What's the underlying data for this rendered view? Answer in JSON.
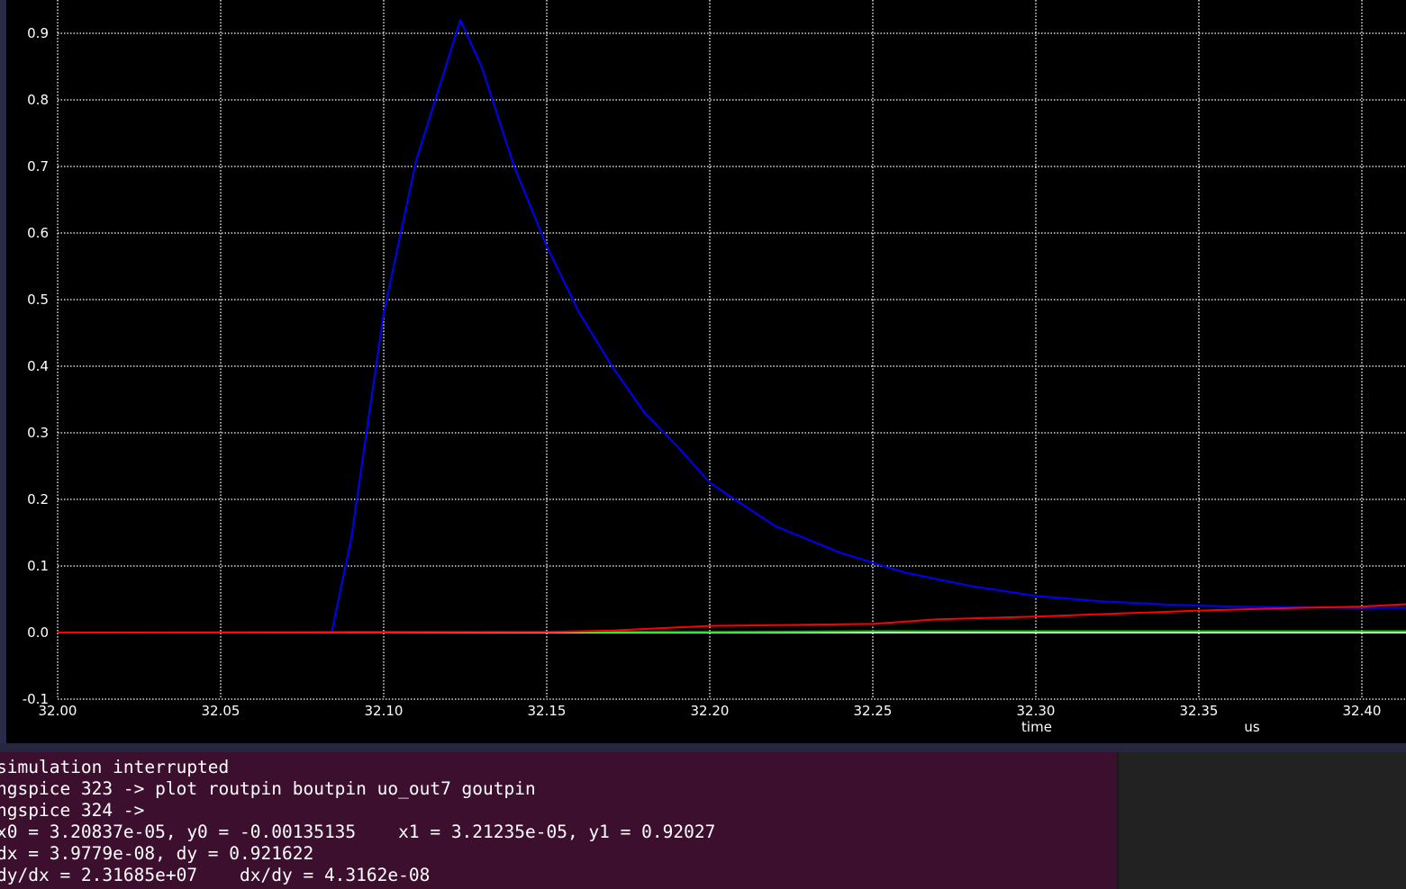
{
  "chart_data": {
    "type": "line",
    "xlabel": "time",
    "xunit": "us",
    "xlim": [
      32.0,
      32.415
    ],
    "ylim": [
      -0.1,
      0.97
    ],
    "x_ticks": [
      32.0,
      32.05,
      32.1,
      32.15,
      32.2,
      32.25,
      32.3,
      32.35,
      32.4
    ],
    "x_tick_labels": [
      "32.00",
      "32.05",
      "32.10",
      "32.15",
      "32.20",
      "32.25",
      "32.30",
      "32.35",
      "32.40"
    ],
    "y_ticks": [
      -0.1,
      0.0,
      0.1,
      0.2,
      0.3,
      0.4,
      0.5,
      0.6,
      0.7,
      0.8,
      0.9
    ],
    "y_tick_labels": [
      "-0.1",
      "0.0",
      "0.1",
      "0.2",
      "0.3",
      "0.4",
      "0.5",
      "0.6",
      "0.7",
      "0.8",
      "0.9"
    ],
    "grid": true,
    "background": "#000000",
    "grid_color": "#ffffff",
    "series": [
      {
        "color": "#0000ff",
        "x": [
          32.0,
          32.084,
          32.09,
          32.1,
          32.11,
          32.1235,
          32.13,
          32.14,
          32.15,
          32.16,
          32.17,
          32.18,
          32.19,
          32.2,
          32.22,
          32.24,
          32.26,
          32.28,
          32.3,
          32.32,
          32.34,
          32.36,
          32.38,
          32.4,
          32.415
        ],
        "y": [
          0.0,
          0.0,
          0.14,
          0.48,
          0.71,
          0.92,
          0.85,
          0.7,
          0.58,
          0.48,
          0.4,
          0.33,
          0.28,
          0.225,
          0.16,
          0.12,
          0.09,
          0.07,
          0.055,
          0.047,
          0.042,
          0.039,
          0.038,
          0.037,
          0.037
        ]
      },
      {
        "color": "#ff0000",
        "x": [
          32.0,
          32.09,
          32.15,
          32.17,
          32.2,
          32.25,
          32.27,
          32.3,
          32.35,
          32.38,
          32.4,
          32.415
        ],
        "y": [
          0.0,
          0.001,
          0.001,
          0.003,
          0.01,
          0.013,
          0.02,
          0.024,
          0.033,
          0.037,
          0.039,
          0.043
        ]
      },
      {
        "color": "#00c800",
        "x": [
          32.0,
          32.1,
          32.17,
          32.2,
          32.25,
          32.3,
          32.35,
          32.4,
          32.415
        ],
        "y": [
          0.0,
          0.0,
          0.001,
          0.001,
          0.002,
          0.002,
          0.002,
          0.002,
          0.002
        ]
      },
      {
        "color": "#ffffff",
        "x": [
          32.0,
          32.415
        ],
        "y": [
          0.0,
          0.0
        ]
      }
    ]
  },
  "terminal": {
    "lines": [
      "simulation interrupted",
      "ngspice 323 -> plot routpin boutpin uo_out7 goutpin",
      "ngspice 324 ->",
      "x0 = 3.20837e-05, y0 = -0.00135135    x1 = 3.21235e-05, y1 = 0.92027",
      "dx = 3.9779e-08, dy = 0.921622",
      "dy/dx = 2.31685e+07    dx/dy = 4.3162e-08"
    ]
  }
}
